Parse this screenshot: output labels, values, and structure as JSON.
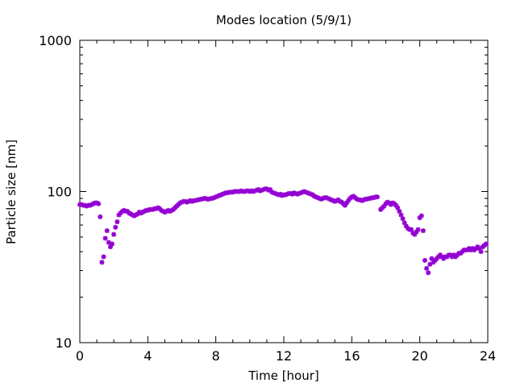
{
  "chart_data": {
    "type": "scatter",
    "title": "Modes location (5/9/1)",
    "xlabel": "Time [hour]",
    "ylabel": "Particle size [nm]",
    "xlim": [
      0,
      24
    ],
    "ylim": [
      10,
      1000
    ],
    "yscale": "log",
    "grid": false,
    "legend": "none",
    "marker_color": "#9400d3",
    "x_ticks": [
      0,
      4,
      8,
      12,
      16,
      20,
      24
    ],
    "x_tick_labels": [
      "0",
      "4",
      "8",
      "12",
      "16",
      "20",
      "24"
    ],
    "y_ticks": [
      10,
      100,
      1000
    ],
    "y_tick_labels": [
      "10",
      "100",
      "1000"
    ],
    "points": [
      [
        0.0,
        82
      ],
      [
        0.1,
        82
      ],
      [
        0.2,
        81
      ],
      [
        0.3,
        81
      ],
      [
        0.4,
        80
      ],
      [
        0.5,
        81
      ],
      [
        0.6,
        81
      ],
      [
        0.7,
        82
      ],
      [
        0.8,
        83
      ],
      [
        0.9,
        84
      ],
      [
        1.0,
        84
      ],
      [
        1.1,
        83
      ],
      [
        1.2,
        68
      ],
      [
        1.3,
        34
      ],
      [
        1.4,
        37
      ],
      [
        1.5,
        49
      ],
      [
        1.6,
        55
      ],
      [
        1.7,
        46
      ],
      [
        1.8,
        43
      ],
      [
        1.9,
        45
      ],
      [
        2.0,
        52
      ],
      [
        2.1,
        58
      ],
      [
        2.2,
        63
      ],
      [
        2.3,
        70
      ],
      [
        2.4,
        72
      ],
      [
        2.5,
        74
      ],
      [
        2.6,
        75
      ],
      [
        2.7,
        74
      ],
      [
        2.8,
        74
      ],
      [
        2.9,
        72
      ],
      [
        3.0,
        71
      ],
      [
        3.1,
        70
      ],
      [
        3.2,
        69
      ],
      [
        3.3,
        70
      ],
      [
        3.4,
        71
      ],
      [
        3.5,
        73
      ],
      [
        3.6,
        72
      ],
      [
        3.7,
        73
      ],
      [
        3.8,
        74
      ],
      [
        3.9,
        75
      ],
      [
        4.0,
        75
      ],
      [
        4.1,
        76
      ],
      [
        4.2,
        76
      ],
      [
        4.3,
        76
      ],
      [
        4.4,
        77
      ],
      [
        4.5,
        77
      ],
      [
        4.6,
        78
      ],
      [
        4.7,
        77
      ],
      [
        4.8,
        75
      ],
      [
        4.9,
        74
      ],
      [
        5.0,
        73
      ],
      [
        5.1,
        74
      ],
      [
        5.2,
        75
      ],
      [
        5.3,
        74
      ],
      [
        5.4,
        75
      ],
      [
        5.5,
        76
      ],
      [
        5.6,
        78
      ],
      [
        5.7,
        80
      ],
      [
        5.8,
        82
      ],
      [
        5.9,
        84
      ],
      [
        6.0,
        85
      ],
      [
        6.1,
        86
      ],
      [
        6.2,
        86
      ],
      [
        6.3,
        85
      ],
      [
        6.4,
        86
      ],
      [
        6.5,
        87
      ],
      [
        6.6,
        86
      ],
      [
        6.7,
        87
      ],
      [
        6.8,
        87
      ],
      [
        6.9,
        88
      ],
      [
        7.0,
        88
      ],
      [
        7.1,
        89
      ],
      [
        7.2,
        89
      ],
      [
        7.3,
        90
      ],
      [
        7.4,
        90
      ],
      [
        7.5,
        89
      ],
      [
        7.6,
        89
      ],
      [
        7.7,
        90
      ],
      [
        7.8,
        90
      ],
      [
        7.9,
        91
      ],
      [
        8.0,
        92
      ],
      [
        8.1,
        93
      ],
      [
        8.2,
        94
      ],
      [
        8.3,
        95
      ],
      [
        8.4,
        96
      ],
      [
        8.5,
        97
      ],
      [
        8.6,
        98
      ],
      [
        8.7,
        98
      ],
      [
        8.8,
        99
      ],
      [
        8.9,
        99
      ],
      [
        9.0,
        99
      ],
      [
        9.1,
        100
      ],
      [
        9.2,
        100
      ],
      [
        9.3,
        100
      ],
      [
        9.4,
        100
      ],
      [
        9.5,
        101
      ],
      [
        9.6,
        100
      ],
      [
        9.7,
        100
      ],
      [
        9.8,
        101
      ],
      [
        9.9,
        101
      ],
      [
        10.0,
        100
      ],
      [
        10.1,
        101
      ],
      [
        10.2,
        100
      ],
      [
        10.3,
        101
      ],
      [
        10.4,
        102
      ],
      [
        10.5,
        103
      ],
      [
        10.6,
        101
      ],
      [
        10.7,
        102
      ],
      [
        10.8,
        103
      ],
      [
        10.9,
        104
      ],
      [
        11.0,
        104
      ],
      [
        11.1,
        102
      ],
      [
        11.2,
        103
      ],
      [
        11.3,
        99
      ],
      [
        11.4,
        98
      ],
      [
        11.5,
        97
      ],
      [
        11.6,
        96
      ],
      [
        11.7,
        95
      ],
      [
        11.8,
        96
      ],
      [
        11.9,
        94
      ],
      [
        12.0,
        95
      ],
      [
        12.1,
        95
      ],
      [
        12.2,
        96
      ],
      [
        12.3,
        97
      ],
      [
        12.4,
        97
      ],
      [
        12.5,
        96
      ],
      [
        12.6,
        98
      ],
      [
        12.7,
        97
      ],
      [
        12.8,
        96
      ],
      [
        12.9,
        97
      ],
      [
        13.0,
        98
      ],
      [
        13.1,
        99
      ],
      [
        13.2,
        100
      ],
      [
        13.3,
        99
      ],
      [
        13.4,
        98
      ],
      [
        13.5,
        97
      ],
      [
        13.6,
        96
      ],
      [
        13.7,
        95
      ],
      [
        13.8,
        93
      ],
      [
        13.9,
        92
      ],
      [
        14.0,
        91
      ],
      [
        14.1,
        90
      ],
      [
        14.2,
        89
      ],
      [
        14.3,
        90
      ],
      [
        14.4,
        91
      ],
      [
        14.5,
        91
      ],
      [
        14.6,
        90
      ],
      [
        14.7,
        89
      ],
      [
        14.8,
        88
      ],
      [
        14.9,
        87
      ],
      [
        15.0,
        86
      ],
      [
        15.1,
        87
      ],
      [
        15.2,
        88
      ],
      [
        15.3,
        86
      ],
      [
        15.4,
        85
      ],
      [
        15.5,
        83
      ],
      [
        15.6,
        81
      ],
      [
        15.7,
        84
      ],
      [
        15.8,
        87
      ],
      [
        15.9,
        90
      ],
      [
        16.0,
        92
      ],
      [
        16.1,
        93
      ],
      [
        16.2,
        91
      ],
      [
        16.3,
        89
      ],
      [
        16.4,
        88
      ],
      [
        16.5,
        88
      ],
      [
        16.6,
        87
      ],
      [
        16.7,
        88
      ],
      [
        16.8,
        89
      ],
      [
        16.9,
        89
      ],
      [
        17.0,
        90
      ],
      [
        17.1,
        90
      ],
      [
        17.2,
        91
      ],
      [
        17.3,
        91
      ],
      [
        17.4,
        92
      ],
      [
        17.5,
        92
      ],
      [
        17.7,
        76
      ],
      [
        17.8,
        78
      ],
      [
        17.9,
        80
      ],
      [
        18.0,
        83
      ],
      [
        18.1,
        85
      ],
      [
        18.2,
        84
      ],
      [
        18.3,
        82
      ],
      [
        18.4,
        84
      ],
      [
        18.5,
        83
      ],
      [
        18.6,
        81
      ],
      [
        18.7,
        78
      ],
      [
        18.8,
        74
      ],
      [
        18.9,
        70
      ],
      [
        19.0,
        66
      ],
      [
        19.1,
        62
      ],
      [
        19.2,
        59
      ],
      [
        19.3,
        57
      ],
      [
        19.4,
        56
      ],
      [
        19.5,
        56
      ],
      [
        19.6,
        53
      ],
      [
        19.7,
        52
      ],
      [
        19.8,
        54
      ],
      [
        19.9,
        56
      ],
      [
        20.0,
        67
      ],
      [
        20.1,
        69
      ],
      [
        20.2,
        55
      ],
      [
        20.3,
        35
      ],
      [
        20.4,
        31
      ],
      [
        20.5,
        29
      ],
      [
        20.6,
        33
      ],
      [
        20.7,
        36
      ],
      [
        20.8,
        34
      ],
      [
        20.9,
        35
      ],
      [
        21.0,
        36
      ],
      [
        21.1,
        37
      ],
      [
        21.2,
        38
      ],
      [
        21.3,
        37
      ],
      [
        21.4,
        36
      ],
      [
        21.5,
        37
      ],
      [
        21.6,
        37
      ],
      [
        21.7,
        38
      ],
      [
        21.8,
        38
      ],
      [
        21.9,
        37
      ],
      [
        22.0,
        38
      ],
      [
        22.1,
        37
      ],
      [
        22.2,
        38
      ],
      [
        22.3,
        39
      ],
      [
        22.4,
        39
      ],
      [
        22.5,
        40
      ],
      [
        22.6,
        41
      ],
      [
        22.7,
        41
      ],
      [
        22.8,
        41
      ],
      [
        22.9,
        42
      ],
      [
        23.0,
        41
      ],
      [
        23.1,
        42
      ],
      [
        23.2,
        41
      ],
      [
        23.3,
        42
      ],
      [
        23.4,
        43
      ],
      [
        23.5,
        42
      ],
      [
        23.6,
        40
      ],
      [
        23.7,
        43
      ],
      [
        23.8,
        44
      ],
      [
        23.9,
        45
      ]
    ]
  }
}
